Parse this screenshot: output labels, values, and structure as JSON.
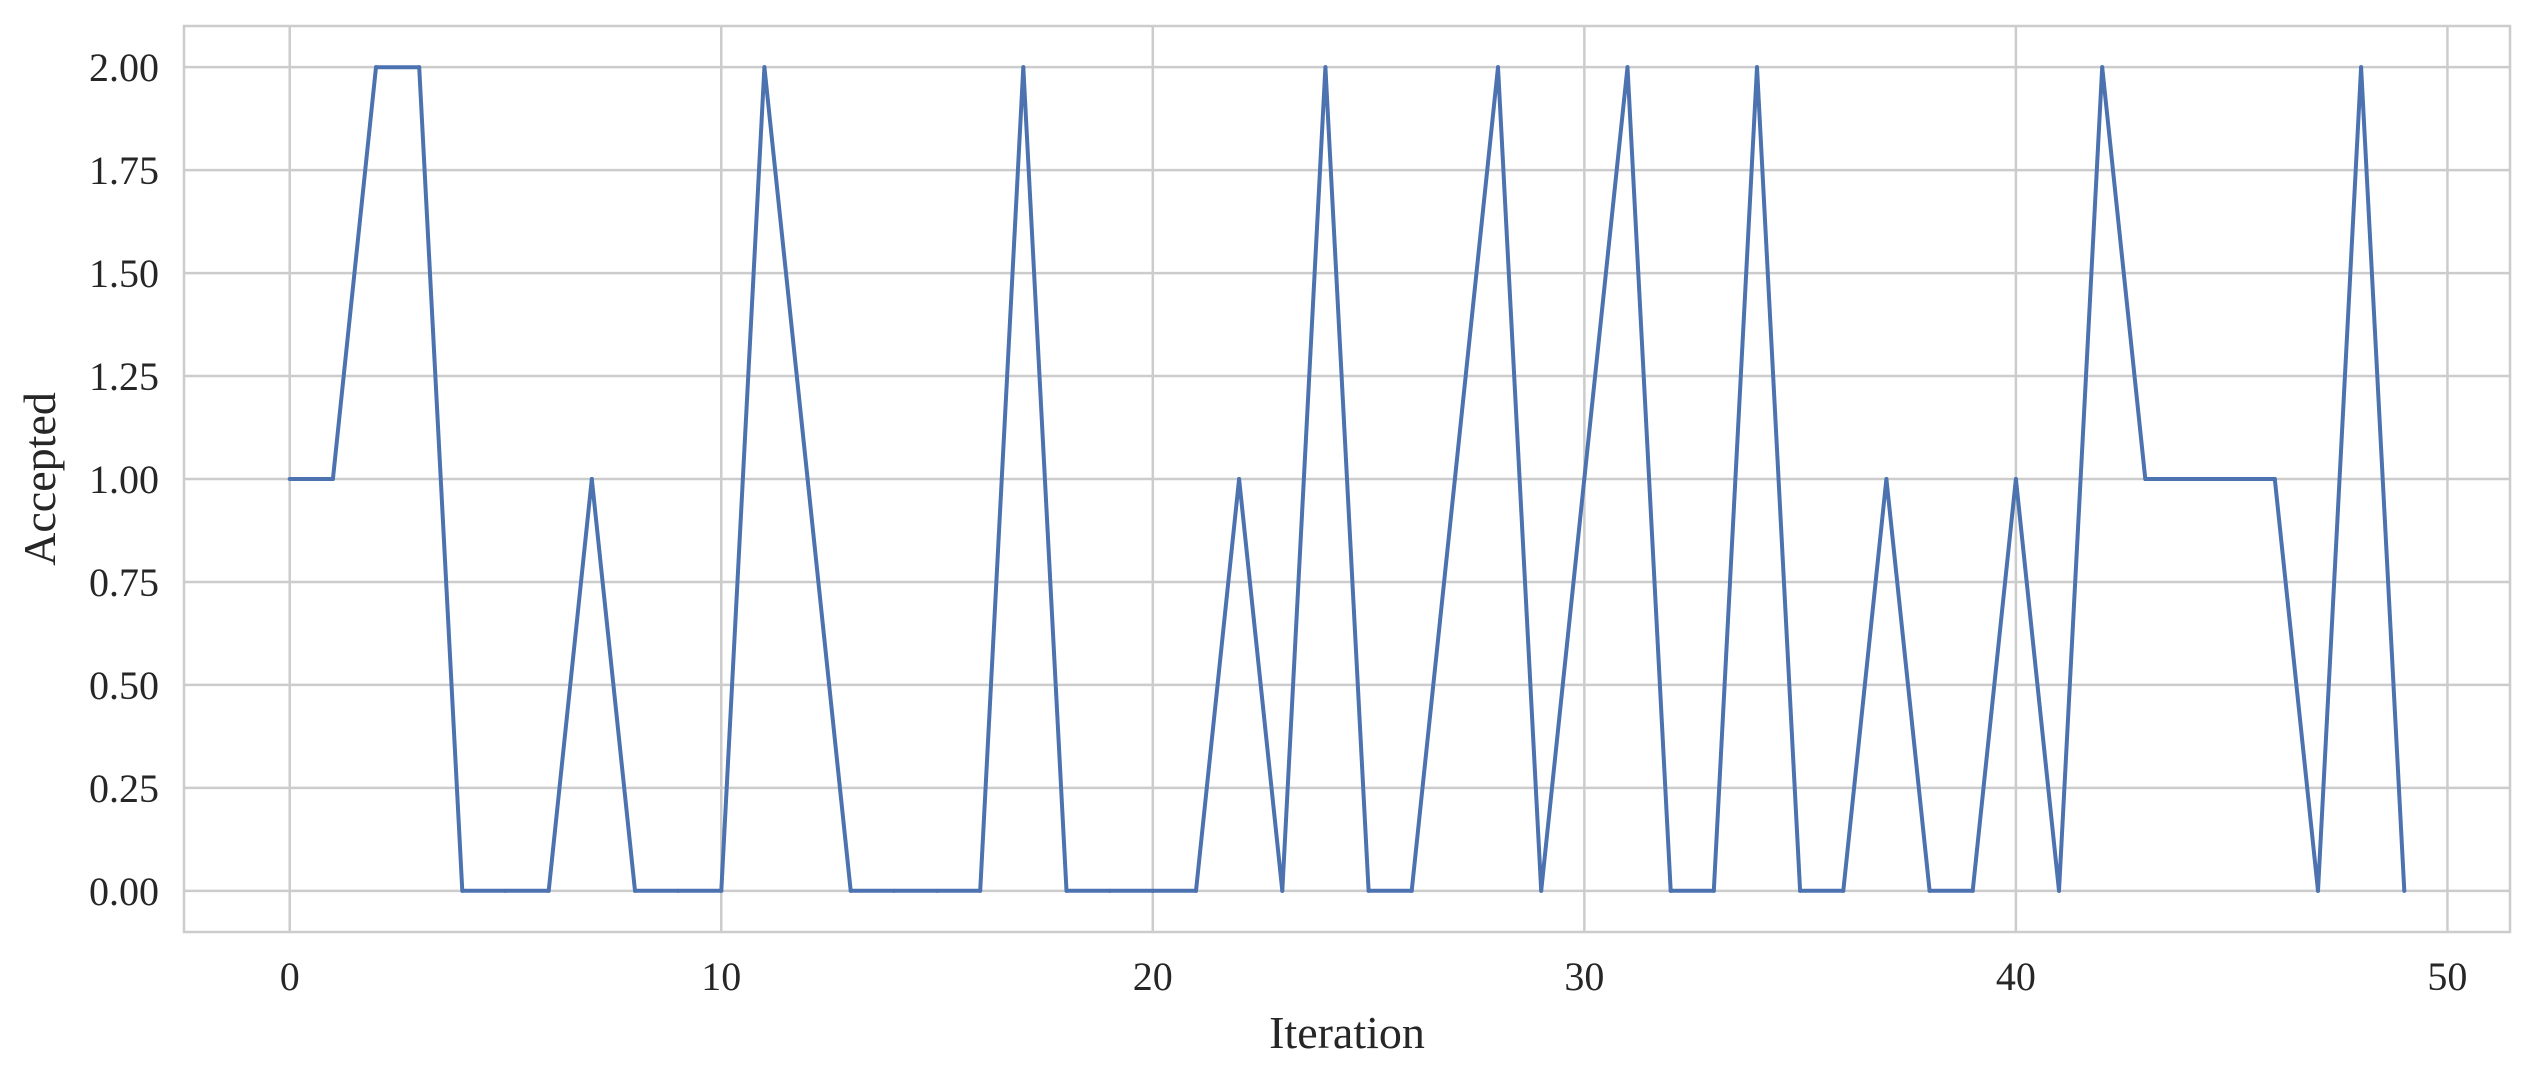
{
  "chart_data": {
    "type": "line",
    "title": "",
    "xlabel": "Iteration",
    "ylabel": "Accepted",
    "xlim": [
      -2.45,
      51.45
    ],
    "ylim": [
      -0.1,
      2.1
    ],
    "xticks": [
      0,
      10,
      20,
      30,
      40,
      50
    ],
    "xtick_labels": [
      "0",
      "10",
      "20",
      "30",
      "40",
      "50"
    ],
    "yticks": [
      0,
      0.25,
      0.5,
      0.75,
      1.0,
      1.25,
      1.5,
      1.75,
      2.0
    ],
    "ytick_labels": [
      "0.00",
      "0.25",
      "0.50",
      "0.75",
      "1.00",
      "1.25",
      "1.50",
      "1.75",
      "2.00"
    ],
    "grid": true,
    "legend": "none",
    "colors": {
      "line": "#4c72b0",
      "grid": "#cccccc",
      "text": "#262626",
      "background": "#ffffff"
    },
    "series": [
      {
        "x": [
          0,
          1,
          2,
          3,
          4,
          5,
          6,
          7,
          8,
          9,
          10,
          11,
          12,
          13,
          14,
          15,
          16,
          17,
          18,
          19,
          20,
          21,
          22,
          23,
          24,
          25,
          26,
          27,
          28,
          29,
          30,
          31,
          32,
          33,
          34,
          35,
          36,
          37,
          38,
          39,
          40,
          41,
          42,
          43,
          44,
          45,
          46,
          47,
          48,
          49
        ],
        "values": [
          1,
          1,
          2,
          2,
          0,
          0,
          0,
          1,
          0,
          0,
          0,
          2,
          1,
          0,
          0,
          0,
          0,
          2,
          0,
          0,
          0,
          0,
          1,
          0,
          2,
          0,
          0,
          1,
          2,
          0,
          1,
          2,
          0,
          0,
          2,
          0,
          0,
          1,
          0,
          0,
          1,
          0,
          2,
          1,
          1,
          1,
          1,
          0,
          2,
          0
        ]
      }
    ]
  }
}
